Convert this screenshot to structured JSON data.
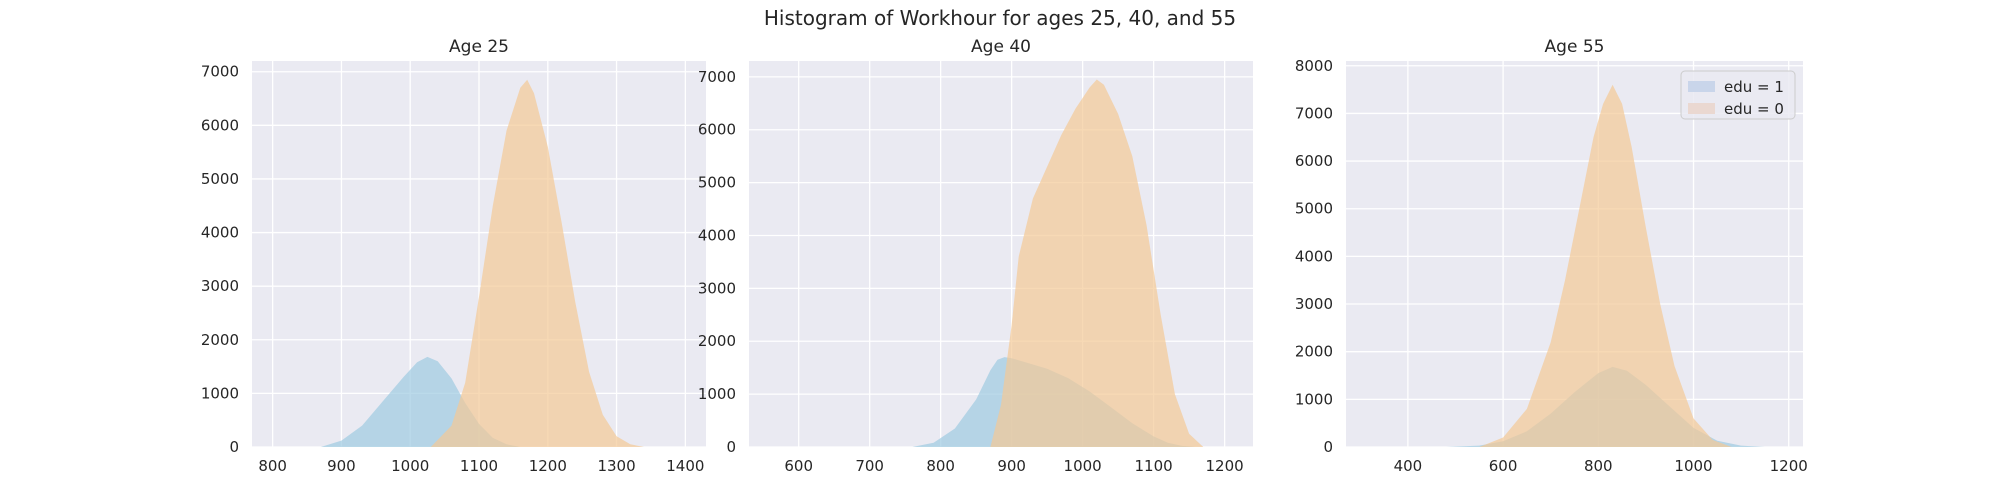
{
  "figure": {
    "title": "Histogram of Workhour for ages 25, 40, and 55",
    "background": "#eaeaf2",
    "grid_color": "#ffffff"
  },
  "series_style": {
    "edu1": {
      "color": "#9ecae1",
      "legend_color": "#c9d5ea"
    },
    "edu0": {
      "color": "#f3c995",
      "legend_color": "#ead8d1"
    }
  },
  "legend": {
    "placement": "top-right",
    "panel": 2,
    "entries": [
      "edu = 1",
      "edu = 0"
    ]
  },
  "chart_data": [
    {
      "type": "area",
      "title": "Age 25",
      "xlim": [
        770,
        1430
      ],
      "ylim": [
        0,
        7200
      ],
      "grid": true,
      "xticks": [
        800,
        900,
        1000,
        1100,
        1200,
        1300,
        1400
      ],
      "yticks": [
        0,
        1000,
        2000,
        3000,
        4000,
        5000,
        6000,
        7000
      ],
      "series": [
        {
          "name": "edu = 1",
          "x": [
            870,
            900,
            930,
            960,
            990,
            1010,
            1025,
            1040,
            1060,
            1080,
            1100,
            1120,
            1140,
            1160
          ],
          "values": [
            0,
            120,
            400,
            850,
            1300,
            1580,
            1680,
            1600,
            1280,
            820,
            430,
            170,
            50,
            0
          ]
        },
        {
          "name": "edu = 0",
          "x": [
            1030,
            1060,
            1080,
            1100,
            1120,
            1140,
            1160,
            1170,
            1180,
            1200,
            1220,
            1240,
            1260,
            1280,
            1300,
            1320,
            1340
          ],
          "values": [
            0,
            400,
            1200,
            2800,
            4500,
            5900,
            6700,
            6850,
            6600,
            5600,
            4200,
            2700,
            1400,
            600,
            200,
            50,
            0
          ]
        }
      ]
    },
    {
      "type": "area",
      "title": "Age 40",
      "xlim": [
        530,
        1240
      ],
      "ylim": [
        0,
        7300
      ],
      "grid": true,
      "xticks": [
        600,
        700,
        800,
        900,
        1000,
        1100,
        1200
      ],
      "yticks": [
        0,
        1000,
        2000,
        3000,
        4000,
        5000,
        6000,
        7000
      ],
      "series": [
        {
          "name": "edu = 1",
          "x": [
            760,
            790,
            820,
            850,
            870,
            880,
            890,
            900,
            920,
            950,
            980,
            1010,
            1040,
            1070,
            1100,
            1120,
            1140,
            1160
          ],
          "values": [
            0,
            80,
            350,
            900,
            1450,
            1650,
            1700,
            1680,
            1600,
            1480,
            1300,
            1050,
            750,
            450,
            200,
            80,
            20,
            0
          ]
        },
        {
          "name": "edu = 0",
          "x": [
            870,
            885,
            900,
            910,
            930,
            950,
            970,
            990,
            1010,
            1020,
            1030,
            1050,
            1070,
            1090,
            1110,
            1130,
            1150,
            1170
          ],
          "values": [
            0,
            800,
            2300,
            3600,
            4700,
            5300,
            5900,
            6400,
            6800,
            6950,
            6850,
            6300,
            5500,
            4200,
            2500,
            1000,
            250,
            0
          ]
        }
      ]
    },
    {
      "type": "area",
      "title": "Age 55",
      "xlim": [
        270,
        1230
      ],
      "ylim": [
        0,
        8100
      ],
      "grid": true,
      "xticks": [
        400,
        600,
        800,
        1000,
        1200
      ],
      "yticks": [
        0,
        1000,
        2000,
        3000,
        4000,
        5000,
        6000,
        7000,
        8000
      ],
      "series": [
        {
          "name": "edu = 1",
          "x": [
            480,
            550,
            600,
            650,
            700,
            750,
            800,
            830,
            860,
            900,
            950,
            1000,
            1050,
            1100,
            1150
          ],
          "values": [
            0,
            30,
            120,
            330,
            700,
            1150,
            1550,
            1680,
            1600,
            1300,
            850,
            400,
            130,
            30,
            0
          ]
        },
        {
          "name": "edu = 0",
          "x": [
            550,
            600,
            650,
            700,
            730,
            760,
            790,
            810,
            830,
            850,
            870,
            900,
            930,
            960,
            1000,
            1040,
            1080
          ],
          "values": [
            0,
            200,
            800,
            2200,
            3500,
            5000,
            6500,
            7200,
            7600,
            7200,
            6300,
            4600,
            3000,
            1700,
            600,
            150,
            0
          ]
        }
      ]
    }
  ]
}
